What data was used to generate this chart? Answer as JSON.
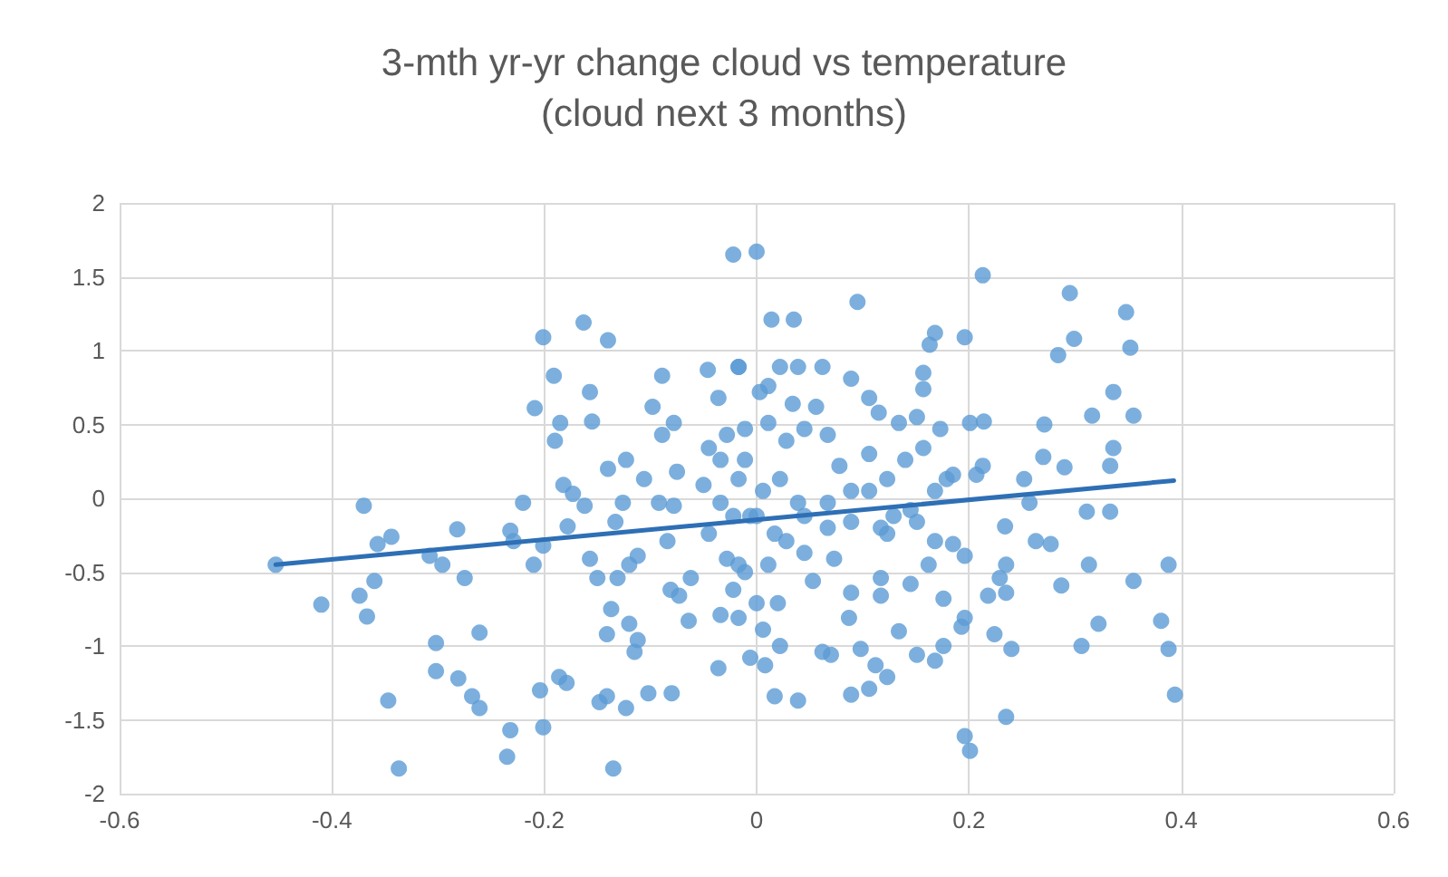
{
  "chart_data": {
    "type": "scatter",
    "title": "3-mth yr-yr change cloud vs temperature\n(cloud next 3 months)",
    "xlim": [
      -0.6,
      0.6
    ],
    "xticks": [
      -0.6,
      -0.4,
      -0.2,
      0,
      0.2,
      0.4,
      0.6
    ],
    "ylim": [
      -2,
      2
    ],
    "yticks": [
      -2,
      -1.5,
      -1,
      -0.5,
      0,
      0.5,
      1,
      1.5,
      2
    ],
    "grid": true,
    "marker": "circle",
    "series": [
      {
        "color": "#5b9bd5",
        "x": [
          -0.453,
          -0.41,
          -0.37,
          -0.357,
          -0.344,
          -0.374,
          -0.36,
          -0.367,
          -0.347,
          -0.337,
          -0.308,
          -0.296,
          -0.282,
          -0.275,
          -0.302,
          -0.302,
          -0.281,
          -0.261,
          -0.268,
          -0.261,
          -0.232,
          -0.229,
          -0.22,
          -0.21,
          -0.201,
          -0.232,
          -0.235,
          -0.201,
          -0.204,
          -0.186,
          -0.179,
          -0.201,
          -0.163,
          -0.14,
          -0.191,
          -0.157,
          -0.155,
          -0.209,
          -0.185,
          -0.19,
          -0.182,
          -0.173,
          -0.162,
          -0.178,
          -0.157,
          -0.15,
          -0.137,
          -0.141,
          -0.148,
          -0.141,
          -0.123,
          -0.135,
          -0.102,
          -0.08,
          -0.12,
          -0.112,
          -0.115,
          -0.131,
          -0.12,
          -0.112,
          -0.14,
          -0.123,
          -0.106,
          -0.126,
          -0.133,
          -0.089,
          -0.098,
          -0.089,
          -0.078,
          -0.075,
          -0.092,
          -0.078,
          -0.084,
          -0.081,
          -0.073,
          -0.062,
          -0.064,
          -0.036,
          -0.046,
          -0.017,
          -0.036,
          -0.045,
          -0.028,
          -0.05,
          -0.034,
          -0.045,
          -0.034,
          -0.006,
          -0.022,
          0,
          -0.011,
          -0.006,
          -0.017,
          -0.022,
          0.014,
          0.035,
          0.095,
          0.213,
          0.295,
          0.348,
          0.352,
          0.299,
          0.284,
          0.336,
          0.316,
          0.355,
          0.271,
          0.336,
          0.333,
          0.27,
          0.29,
          0.196,
          0.168,
          0.163,
          0.157,
          0.157,
          0.201,
          0.214,
          0.213,
          0.207,
          0.185,
          0.252,
          0.257,
          0.311,
          0.333,
          0.234,
          0.263,
          0.277,
          0.235,
          0.229,
          0.287,
          0.313,
          0.355,
          0.388,
          0.381,
          0.388,
          0.394,
          0.322,
          0.306,
          0.24,
          0.224,
          0.235,
          0.196,
          0.201,
          0.196,
          0.193,
          0.176,
          0.168,
          0.151,
          0.185,
          0.196,
          0.168,
          0.218,
          0.235,
          0.145,
          0.162,
          0.176,
          0.134,
          0.117,
          0.117,
          0.089,
          0.087,
          0.062,
          0.07,
          0.098,
          0.112,
          0.089,
          0.106,
          0.123,
          0.017,
          0.039,
          0.022,
          0.008,
          0.053,
          0.006,
          -0.017,
          0,
          0.02,
          -0.028,
          -0.011,
          0.011,
          0.028,
          0.045,
          0.073,
          0.089,
          0.117,
          0.145,
          0.151,
          0.106,
          0.134,
          0.151,
          0.173,
          0.106,
          0.115,
          0.089,
          0.062,
          0.039,
          0.022,
          -0.017,
          0.003,
          0.011,
          0.034,
          0.056,
          -0.011,
          0.011,
          0.028,
          0.045,
          0.067,
          0.078,
          0.106,
          0.123,
          0.14,
          0.157,
          -0.034,
          -0.017,
          0.006,
          0.022,
          0.039,
          0.067,
          0.089,
          -0.022,
          0,
          0.017,
          0.045,
          0.067,
          0.129,
          0.123,
          0.168,
          0.179
        ],
        "values": [
          -0.45,
          -0.72,
          -0.05,
          -0.31,
          -0.26,
          -0.66,
          -0.56,
          -0.8,
          -1.37,
          -1.83,
          -0.39,
          -0.45,
          -0.21,
          -0.54,
          -0.98,
          -1.17,
          -1.22,
          -0.91,
          -1.34,
          -1.42,
          -0.22,
          -0.29,
          -0.03,
          -0.45,
          -0.32,
          -1.57,
          -1.75,
          -1.55,
          -1.3,
          -1.21,
          -1.25,
          1.09,
          1.19,
          1.07,
          0.83,
          0.72,
          0.52,
          0.61,
          0.51,
          0.39,
          0.09,
          0.03,
          -0.05,
          -0.19,
          -0.41,
          -0.54,
          -0.75,
          -0.92,
          -1.38,
          -1.34,
          -1.42,
          -1.83,
          -1.32,
          -1.32,
          -0.85,
          -0.96,
          -1.04,
          -0.54,
          -0.45,
          -0.39,
          0.2,
          0.26,
          0.13,
          -0.03,
          -0.16,
          0.83,
          0.62,
          0.43,
          0.51,
          0.18,
          -0.03,
          -0.05,
          -0.29,
          -0.62,
          -0.66,
          -0.54,
          -0.83,
          -1.15,
          0.87,
          0.89,
          0.68,
          0.34,
          0.43,
          0.09,
          -0.03,
          -0.24,
          -0.79,
          -1.08,
          1.65,
          1.67,
          0.26,
          -0.12,
          -0.45,
          -0.62,
          1.21,
          1.21,
          1.33,
          1.51,
          1.39,
          1.26,
          1.02,
          1.08,
          0.97,
          0.72,
          0.56,
          0.56,
          0.5,
          0.34,
          0.22,
          0.28,
          0.21,
          1.09,
          1.12,
          1.04,
          0.85,
          0.74,
          0.51,
          0.52,
          0.22,
          0.16,
          0.16,
          0.13,
          -0.03,
          -0.09,
          -0.09,
          -0.19,
          -0.29,
          -0.31,
          -0.45,
          -0.54,
          -0.59,
          -0.45,
          -0.56,
          -0.45,
          -0.83,
          -1.02,
          -1.33,
          -0.85,
          -1.0,
          -1.02,
          -0.92,
          -1.48,
          -1.61,
          -1.71,
          -0.81,
          -0.87,
          -1.0,
          -1.1,
          -1.06,
          -0.31,
          -0.39,
          -0.29,
          -0.66,
          -0.64,
          -0.58,
          -0.45,
          -0.68,
          -0.9,
          -0.54,
          -0.66,
          -0.64,
          -0.81,
          -1.04,
          -1.06,
          -1.02,
          -1.13,
          -1.33,
          -1.29,
          -1.21,
          -1.34,
          -1.37,
          -1.0,
          -1.13,
          -0.56,
          -0.89,
          -0.81,
          -0.71,
          -0.71,
          -0.41,
          -0.5,
          -0.45,
          -0.29,
          -0.37,
          -0.41,
          -0.16,
          -0.2,
          -0.08,
          -0.16,
          0.3,
          0.51,
          0.55,
          0.47,
          0.68,
          0.58,
          0.81,
          0.89,
          0.89,
          0.89,
          0.89,
          0.72,
          0.76,
          0.64,
          0.62,
          0.47,
          0.51,
          0.39,
          0.47,
          0.43,
          0.22,
          0.05,
          0.13,
          0.26,
          0.34,
          0.26,
          0.13,
          0.05,
          0.13,
          -0.03,
          -0.03,
          0.05,
          -0.12,
          -0.12,
          -0.24,
          -0.12,
          -0.2,
          -0.12,
          -0.24,
          0.05,
          0.13
        ]
      },
      {
        "type": "line",
        "color": "#2e6fb5",
        "x": [
          -0.453,
          0.393
        ],
        "values": [
          -0.45,
          0.12
        ],
        "marker": "none",
        "line_style": "solid"
      }
    ]
  }
}
